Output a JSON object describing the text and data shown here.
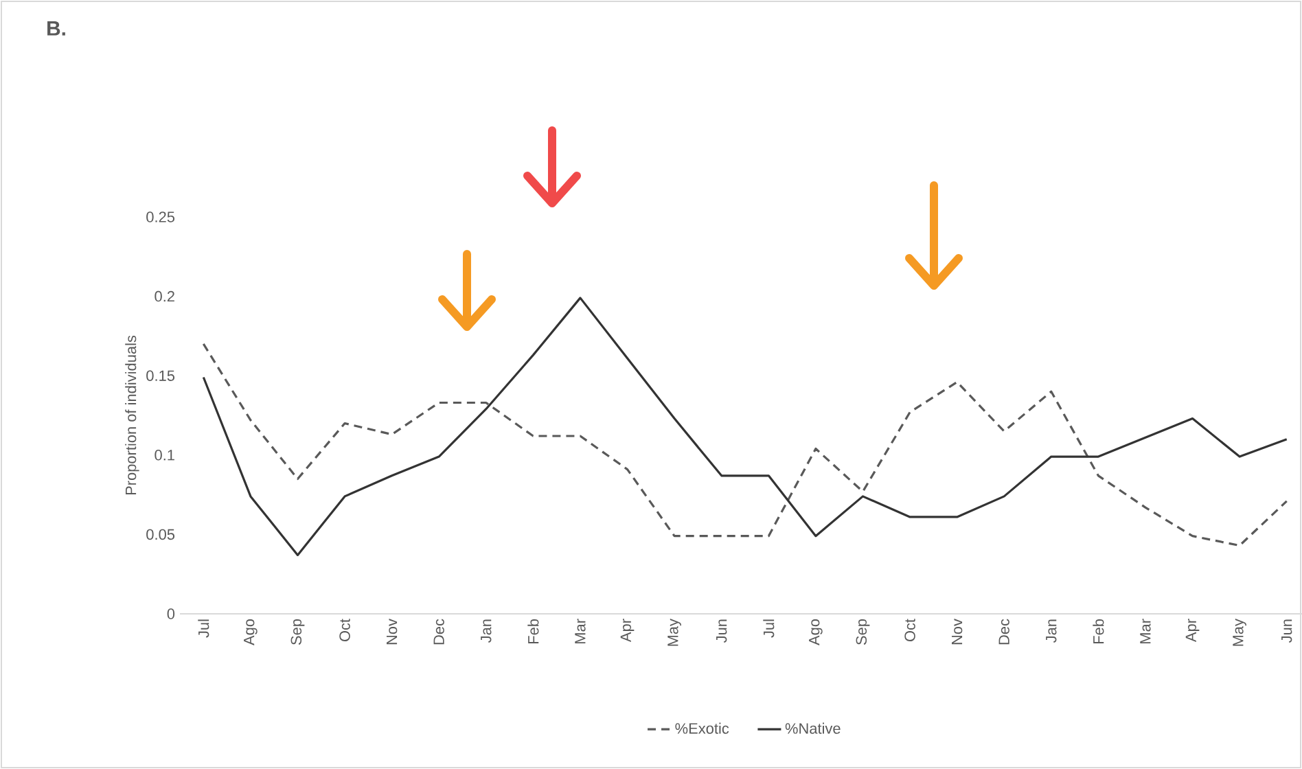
{
  "chart_data": {
    "type": "line",
    "title": "B.",
    "ylabel": "Proportion of individuals",
    "categories": [
      "Jul",
      "Ago",
      "Sep",
      "Oct",
      "Nov",
      "Dec",
      "Jan",
      "Feb",
      "Mar",
      "Apr",
      "May",
      "Jun",
      "Jul",
      "Ago",
      "Sep",
      "Oct",
      "Nov",
      "Dec",
      "Jan",
      "Feb",
      "Mar",
      "Apr",
      "May",
      "Jun"
    ],
    "series": [
      {
        "name": "%Exotic",
        "color": "#595959",
        "line_style": "dashed",
        "values": [
          0.17,
          0.122,
          0.085,
          0.12,
          0.113,
          0.133,
          0.133,
          0.112,
          0.112,
          0.091,
          0.049,
          0.049,
          0.049,
          0.104,
          0.077,
          0.127,
          0.146,
          0.115,
          0.14,
          0.087,
          0.067,
          0.049,
          0.043,
          0.071
        ]
      },
      {
        "name": "%Native",
        "color": "#333333",
        "line_style": "solid",
        "values": [
          0.149,
          0.074,
          0.037,
          0.074,
          0.087,
          0.099,
          0.129,
          0.163,
          0.199,
          0.161,
          0.123,
          0.087,
          0.087,
          0.049,
          0.074,
          0.061,
          0.061,
          0.074,
          0.099,
          0.099,
          0.111,
          0.123,
          0.099,
          0.11
        ]
      }
    ],
    "ylim": [
      0,
      0.25
    ],
    "yticks": [
      0,
      0.05,
      0.1,
      0.15,
      0.2,
      0.25
    ],
    "grid": false,
    "legend": "bottom"
  }
}
